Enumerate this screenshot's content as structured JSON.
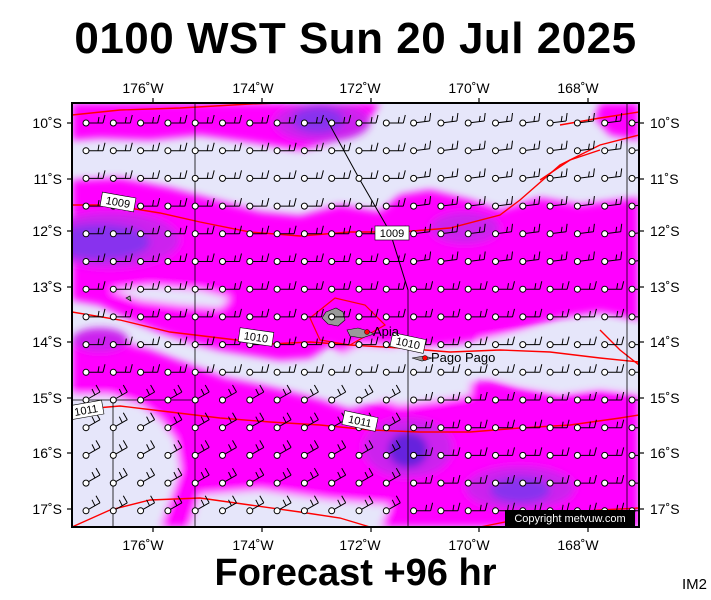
{
  "title": "0100 WST Sun 20 Jul 2025",
  "footer": "Forecast +96 hr",
  "image_tag": "IM2",
  "copyright": "Copyright metvuw.com",
  "colors": {
    "background": "#e6e6fa",
    "rain_light": "#ff00ff",
    "rain_medium": "#cc22ee",
    "rain_heavy": "#8833ee",
    "rain_heaviest": "#6622dd",
    "isobar": "#ff0000",
    "land": "#999999"
  },
  "axes": {
    "longitude_labels": [
      "176˚W",
      "174˚W",
      "172˚W",
      "170˚W",
      "168˚W"
    ],
    "latitude_labels": [
      "10˚S",
      "11˚S",
      "12˚S",
      "13˚S",
      "14˚S",
      "15˚S",
      "16˚S",
      "17˚S"
    ]
  },
  "isobar_labels": [
    "1009",
    "1009",
    "1010",
    "1010",
    "1011",
    "1011"
  ],
  "places": [
    {
      "name": "Apia"
    },
    {
      "name": "Pago Pago"
    }
  ],
  "wind_barbs": "wind-barb-grid"
}
